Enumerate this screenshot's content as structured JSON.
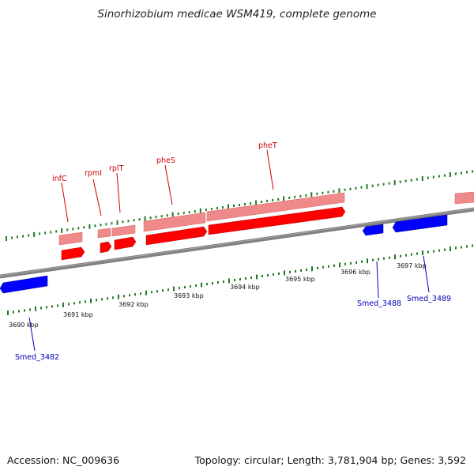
{
  "title": "Sinorhizobium medicae WSM419, complete genome",
  "footer": {
    "accession": "Accession: NC_009636",
    "summary": "Topology: circular; Length: 3,781,904 bp; Genes: 3,592"
  },
  "colors": {
    "forward_gene": "#ff0000",
    "forward_gene_light": "#f08a8a",
    "reverse_gene": "#0000ff",
    "forward_label": "#cc0000",
    "reverse_label": "#0000bb",
    "tick": "#1f7a1f",
    "backbone": "#808080"
  },
  "kbp_labels": [
    "3690 kbp",
    "3691 kbp",
    "3692 kbp",
    "3693 kbp",
    "3694 kbp",
    "3695 kbp",
    "3696 kbp",
    "3697 kbp"
  ],
  "forward_genes": [
    "infC",
    "rpmI",
    "rplT",
    "pheS",
    "pheT"
  ],
  "reverse_genes": [
    "Smed_3482",
    "Smed_3488",
    "Smed_3489"
  ]
}
